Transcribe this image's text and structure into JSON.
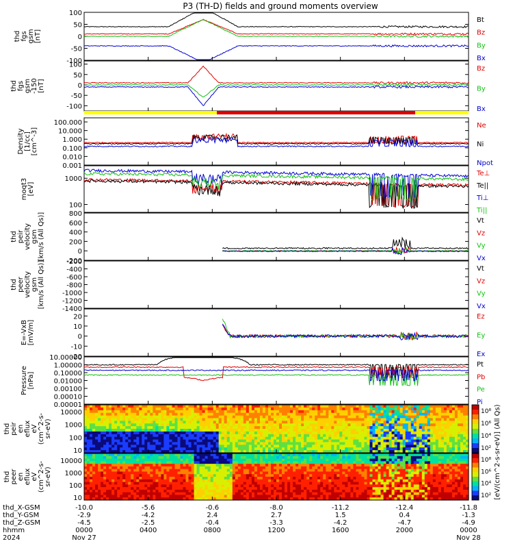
{
  "title": "P3 (TH-D) fields and ground moments overview",
  "colors": {
    "black": "#000000",
    "red": "#e00000",
    "green": "#10c010",
    "blue": "#0000d0",
    "bar_yellow": "#ffff00",
    "bar_red": "#e00000"
  },
  "chart_data": [
    {
      "type": "line",
      "panel": "fgs_gsm",
      "ylabel": [
        "thd",
        "fgs",
        "gsm",
        "[nT]"
      ],
      "yticks": [
        "100",
        "50",
        "0",
        "-50",
        "-100"
      ],
      "ylim": [
        -100,
        100
      ],
      "series": [
        {
          "name": "Bt",
          "color": "black"
        },
        {
          "name": "Bz",
          "color": "red"
        },
        {
          "name": "By",
          "color": "green"
        },
        {
          "name": "Bx",
          "color": "blue"
        }
      ]
    },
    {
      "type": "line",
      "panel": "fgs_gsm_clip",
      "ylabel": [
        "thd",
        "fgs",
        "gsm",
        "-150",
        "[nT]"
      ],
      "yticks": [
        "100",
        "50",
        "0",
        "-50",
        "-100"
      ],
      "ylim": [
        -125,
        115
      ],
      "series": [
        {
          "name": "Bz",
          "color": "red"
        },
        {
          "name": "By",
          "color": "green"
        },
        {
          "name": "Bx",
          "color": "blue"
        }
      ]
    },
    {
      "type": "line",
      "panel": "density",
      "ylabel": [
        "Density",
        "[1/cc]",
        "[cm^-3]"
      ],
      "yticks": [
        "100.000",
        "10.000",
        "1.000",
        "0.100",
        "0.010",
        "0.001"
      ],
      "scale": "log",
      "ylim": [
        0.001,
        300
      ],
      "series": [
        {
          "name": "Ne",
          "color": "red"
        },
        {
          "name": "Ni",
          "color": "black"
        },
        {
          "name": "Npot",
          "color": "blue"
        }
      ]
    },
    {
      "type": "line",
      "panel": "temperature",
      "ylabel": [
        "moqt3",
        "[eV]"
      ],
      "yticks": [
        "1000",
        "100"
      ],
      "scale": "log",
      "ylim": [
        50,
        3000
      ],
      "series": [
        {
          "name": "Te⊥",
          "color": "red"
        },
        {
          "name": "Te||",
          "color": "black"
        },
        {
          "name": "Ti⊥",
          "color": "blue"
        },
        {
          "name": "Ti||",
          "color": "green"
        }
      ]
    },
    {
      "type": "line",
      "panel": "peir_velocity",
      "ylabel": [
        "thd",
        "peir",
        "velocity",
        "gsm",
        "[km/s (All Qs)]"
      ],
      "yticks": [
        "800",
        "600",
        "400",
        "200",
        "0",
        "-200"
      ],
      "ylim": [
        -200,
        800
      ],
      "series": [
        {
          "name": "Vt",
          "color": "black"
        },
        {
          "name": "Vz",
          "color": "red"
        },
        {
          "name": "Vy",
          "color": "green"
        },
        {
          "name": "Vx",
          "color": "blue"
        }
      ]
    },
    {
      "type": "line",
      "panel": "peer_velocity",
      "ylabel": [
        "thd",
        "peer",
        "velocity",
        "gsm",
        "[km/s (All Qs)]"
      ],
      "yticks": [
        "-200",
        "-400",
        "-600",
        "-800",
        "-1000",
        "-1200",
        "-1400"
      ],
      "ylim": [
        -1400,
        -200
      ],
      "series": [
        {
          "name": "Vt",
          "color": "black"
        },
        {
          "name": "Vz",
          "color": "red"
        },
        {
          "name": "Vy",
          "color": "green"
        },
        {
          "name": "Vx",
          "color": "blue"
        }
      ]
    },
    {
      "type": "line",
      "panel": "efield",
      "ylabel": [
        "E=-VxB",
        "[mV/m]"
      ],
      "yticks": [
        "20",
        "10",
        "0",
        "-10",
        "-20"
      ],
      "ylim": [
        -20,
        27
      ],
      "series": [
        {
          "name": "Ez",
          "color": "red"
        },
        {
          "name": "Ey",
          "color": "green"
        },
        {
          "name": "Ex",
          "color": "blue"
        }
      ]
    },
    {
      "type": "line",
      "panel": "pressure",
      "ylabel": [
        "Pressure",
        "[nPa]"
      ],
      "yticks": [
        "10.00000",
        "1.00000",
        "0.10000",
        "0.01000",
        "0.00100",
        "0.00010",
        "0.00001"
      ],
      "scale": "log",
      "ylim": [
        1e-05,
        10
      ],
      "series": [
        {
          "name": "Pt",
          "color": "black"
        },
        {
          "name": "Pb",
          "color": "red"
        },
        {
          "name": "Pe",
          "color": "green"
        },
        {
          "name": "Pi",
          "color": "blue"
        }
      ]
    },
    {
      "type": "heatmap",
      "panel": "peir_en_eflux",
      "ylabel": [
        "thd",
        "peir",
        "en",
        "eflux",
        "eV",
        "(cm^2-s-",
        "sr-eV)"
      ],
      "yticks": [
        "10000",
        "1000",
        "100",
        "10"
      ],
      "scale": "log"
    },
    {
      "type": "heatmap",
      "panel": "peer_en_eflux",
      "ylabel": [
        "thd",
        "peer",
        "en",
        "eflux",
        "eV",
        "(cm^2-s-",
        "sr-eV)"
      ],
      "yticks": [
        "10000",
        "1000",
        "100",
        "10"
      ],
      "scale": "log"
    }
  ],
  "colorbar": {
    "label": "[eV/(cm^2-s-sr-eV)] (All Qs)",
    "top_ticks": [
      "10⁸",
      "10⁶",
      "10⁴",
      "10²"
    ],
    "bottom_ticks": [
      "10⁸",
      "10⁶",
      "10⁴",
      "10²"
    ]
  },
  "xaxis": {
    "rows": [
      {
        "label": "thd_X-GSM",
        "values": [
          "-10.0",
          "-5.6",
          "-0.6",
          "-8.0",
          "-11.2",
          "-12.4",
          "-11.8"
        ]
      },
      {
        "label": "thd_Y-GSM",
        "values": [
          "-2.9",
          "-4.2",
          "2.4",
          "2.7",
          "1.5",
          "0.4",
          "-1.3"
        ]
      },
      {
        "label": "thd_Z-GSM",
        "values": [
          "-4.5",
          "-2.5",
          "-0.4",
          "-3.3",
          "-4.2",
          "-4.7",
          "-4.9"
        ]
      },
      {
        "label": "hhmm",
        "values": [
          "0000",
          "0400",
          "0800",
          "1200",
          "1600",
          "2000",
          "0000"
        ]
      }
    ],
    "year": "2024",
    "dates": [
      "Nov 27",
      "Nov 28"
    ]
  }
}
